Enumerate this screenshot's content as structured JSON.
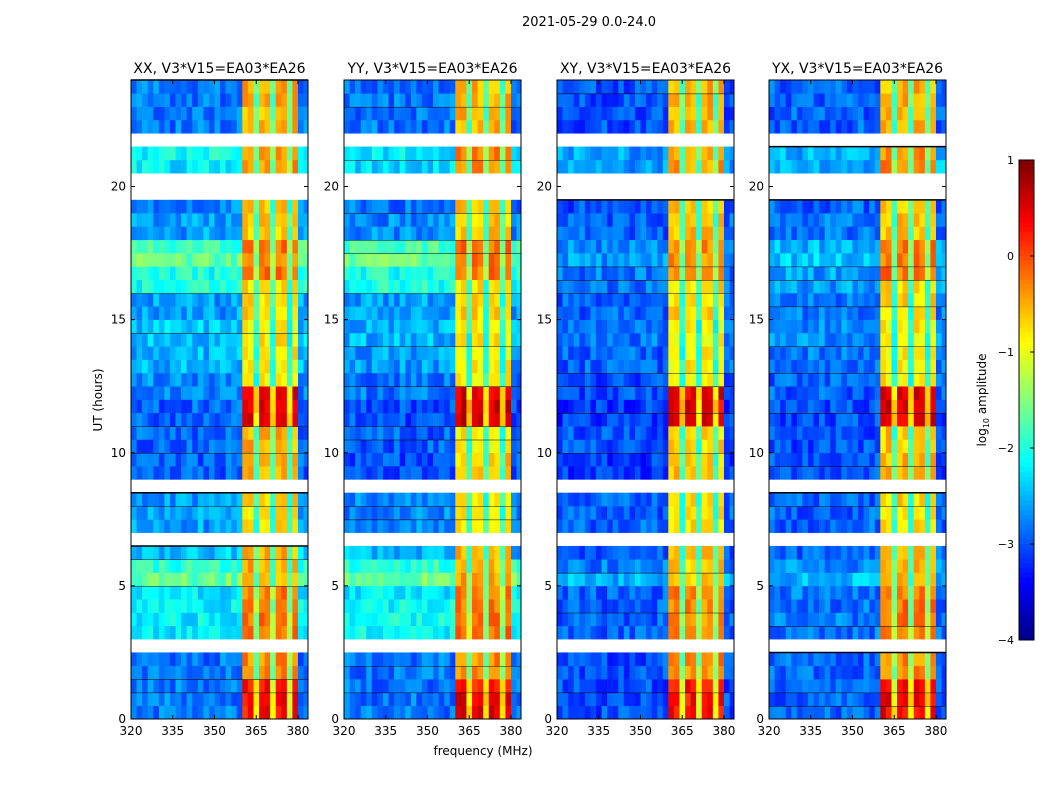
{
  "chart_data": {
    "type": "heatmap",
    "title": "2021-05-29 0.0-24.0",
    "xlabel": "frequency (MHz)",
    "ylabel": "UT (hours)",
    "xlim": [
      320,
      383.6
    ],
    "ylim": [
      0,
      24
    ],
    "xticks": [
      320,
      335,
      350,
      365,
      380
    ],
    "yticks": [
      0,
      5,
      10,
      15,
      20
    ],
    "row_hours": 0.5,
    "rfi_band_mhz": [
      360,
      380
    ],
    "colorbar": {
      "label": "log",
      "label_sub": "10",
      "label_rest": " amplitude",
      "colormap": "jet",
      "range": [
        -4,
        1
      ],
      "ticks": [
        1,
        0,
        -1,
        -2,
        -3,
        -4
      ],
      "tick_labels": [
        "1",
        "0",
        "−1",
        "−2",
        "−3",
        "−4"
      ]
    },
    "panels": [
      {
        "title": "XX, V3*V15=EA03*EA26",
        "low": [
          -2.8,
          -2.8,
          -2.8,
          -2.8,
          -2.8,
          null,
          -2.2,
          -2.2,
          -2.2,
          -2.2,
          -1.6,
          -1.9,
          -2.4,
          null,
          -2.6,
          -2.6,
          -2.6,
          null,
          -2.9,
          -2.9,
          -2.9,
          -2.9,
          -2.9,
          -2.9,
          -2.7,
          -2.7,
          -2.5,
          -2.5,
          -2.4,
          -2.4,
          -2.6,
          -2.6,
          -2.0,
          -2.0,
          -1.6,
          -1.8,
          -2.6,
          -2.6,
          -2.7,
          null,
          null,
          -2.2,
          -2.1,
          null,
          -2.8,
          -2.8,
          -2.8,
          -2.8
        ],
        "rfi": [
          0.3,
          0.3,
          0.3,
          -0.3,
          -0.3,
          null,
          -0.2,
          -0.2,
          -0.2,
          -0.2,
          -0.5,
          -0.5,
          -0.5,
          null,
          -0.7,
          -0.7,
          -0.7,
          null,
          -0.5,
          -0.5,
          -0.5,
          -0.5,
          0.5,
          0.5,
          0.5,
          -0.8,
          -0.8,
          -0.8,
          -0.8,
          -0.8,
          -0.7,
          -0.7,
          -0.7,
          -0.2,
          -0.2,
          -0.2,
          -0.6,
          -0.6,
          -0.6,
          null,
          null,
          -0.3,
          -0.3,
          null,
          -0.5,
          -0.5,
          -0.5,
          -0.5
        ]
      },
      {
        "title": "YY, V3*V15=EA03*EA26",
        "low": [
          -2.8,
          -2.8,
          -2.8,
          -2.8,
          -2.8,
          null,
          -2.1,
          -2.1,
          -2.1,
          -2.2,
          -1.6,
          -1.9,
          -2.5,
          null,
          -2.7,
          -2.7,
          -2.7,
          null,
          -3.0,
          -3.0,
          -2.9,
          -2.9,
          -3.0,
          -3.0,
          -2.8,
          -2.8,
          -2.6,
          -2.6,
          -2.5,
          -2.5,
          -2.6,
          -2.6,
          -2.0,
          -2.0,
          -1.6,
          -1.8,
          -2.7,
          -2.7,
          -2.8,
          null,
          null,
          -2.3,
          -2.2,
          null,
          -2.8,
          -2.8,
          -2.8,
          -2.8
        ],
        "rfi": [
          0.5,
          0.5,
          0.3,
          -0.3,
          -0.3,
          null,
          -0.1,
          -0.1,
          -0.2,
          -0.2,
          -0.4,
          -0.5,
          -0.5,
          null,
          -0.7,
          -0.7,
          -0.7,
          null,
          -0.6,
          -0.6,
          -0.8,
          -0.8,
          0.6,
          0.6,
          0.5,
          -0.8,
          -0.8,
          -0.8,
          -0.8,
          -0.8,
          -0.7,
          -0.7,
          -0.7,
          -0.2,
          -0.2,
          -0.2,
          -0.6,
          -0.6,
          -0.6,
          null,
          null,
          -0.3,
          -0.3,
          null,
          -0.5,
          -0.5,
          -0.5,
          -0.5
        ]
      },
      {
        "title": "XY, V3*V15=EA03*EA26",
        "low": [
          -3.0,
          -3.0,
          -3.0,
          -3.0,
          -3.0,
          null,
          -2.9,
          -2.9,
          -2.9,
          -2.9,
          -2.5,
          -2.8,
          -2.9,
          null,
          -2.9,
          -2.9,
          -2.9,
          null,
          -3.1,
          -3.1,
          -3.0,
          -3.0,
          -3.1,
          -3.1,
          -3.0,
          -3.0,
          -2.9,
          -2.9,
          -2.8,
          -2.8,
          -2.9,
          -2.9,
          -2.8,
          -2.8,
          -2.6,
          -2.7,
          -2.9,
          -2.9,
          -3.0,
          null,
          null,
          -2.6,
          -2.6,
          null,
          -3.0,
          -3.0,
          -3.0,
          -3.0
        ],
        "rfi": [
          0.3,
          0.3,
          0.3,
          -0.3,
          -0.3,
          null,
          -0.3,
          -0.3,
          -0.3,
          -0.3,
          -0.6,
          -0.6,
          -0.6,
          null,
          -0.7,
          -0.7,
          -0.7,
          null,
          -0.6,
          -0.6,
          -0.7,
          -0.7,
          0.5,
          0.5,
          0.5,
          -0.8,
          -0.8,
          -0.8,
          -0.8,
          -0.8,
          -0.7,
          -0.7,
          -0.7,
          -0.3,
          -0.3,
          -0.3,
          -0.6,
          -0.6,
          -0.6,
          null,
          null,
          -0.4,
          -0.4,
          null,
          -0.5,
          -0.5,
          -0.5,
          -0.5
        ]
      },
      {
        "title": "YX, V3*V15=EA03*EA26",
        "low": [
          -2.9,
          -2.9,
          -2.9,
          -2.9,
          -2.9,
          null,
          -2.8,
          -2.8,
          -2.8,
          -2.8,
          -2.5,
          -2.7,
          -2.9,
          null,
          -2.9,
          -2.9,
          -2.9,
          null,
          -3.0,
          -3.0,
          -3.0,
          -3.0,
          -3.0,
          -3.0,
          -2.9,
          -2.9,
          -2.8,
          -2.8,
          -2.7,
          -2.7,
          -2.8,
          -2.8,
          -2.6,
          -2.6,
          -2.4,
          -2.5,
          -2.8,
          -2.8,
          -2.9,
          null,
          null,
          -2.5,
          -2.5,
          null,
          -2.9,
          -2.9,
          -2.9,
          -2.9
        ],
        "rfi": [
          0.4,
          0.4,
          0.3,
          -0.3,
          -0.3,
          null,
          -0.2,
          -0.2,
          -0.2,
          -0.2,
          -0.5,
          -0.5,
          -0.5,
          null,
          -0.7,
          -0.7,
          -0.7,
          null,
          -0.5,
          -0.5,
          -0.6,
          -0.6,
          0.5,
          0.5,
          0.5,
          -0.8,
          -0.8,
          -0.8,
          -0.8,
          -0.8,
          -0.7,
          -0.7,
          -0.7,
          -0.2,
          -0.2,
          -0.2,
          -0.6,
          -0.6,
          -0.6,
          null,
          null,
          -0.3,
          -0.3,
          null,
          -0.5,
          -0.5,
          -0.5,
          -0.5
        ]
      }
    ]
  }
}
